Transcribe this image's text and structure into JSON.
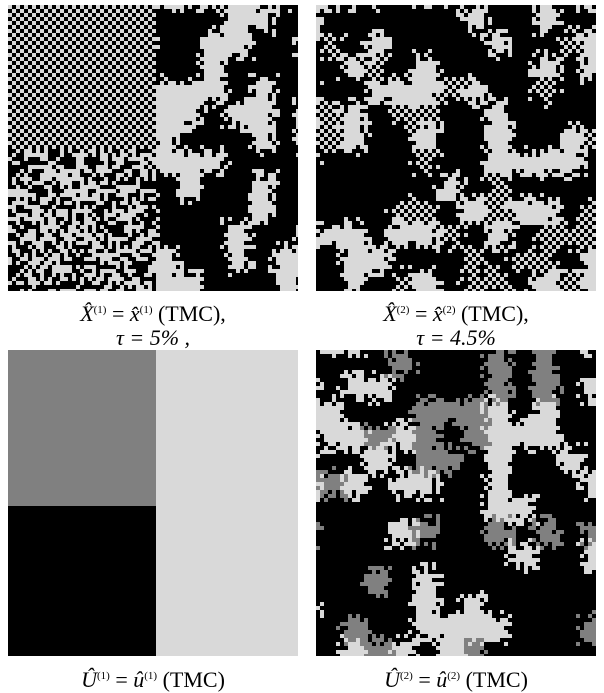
{
  "panels": [
    {
      "caption": {
        "lhs": "X̂",
        "lhs_sup": "(1)",
        "eq": "=",
        "rhs": "x̂",
        "rhs_sup": "(1)",
        "suffix": "(TMC),",
        "line2": "τ = 5% ,"
      }
    },
    {
      "caption": {
        "lhs": "X̂",
        "lhs_sup": "(2)",
        "eq": "=",
        "rhs": "x̂",
        "rhs_sup": "(2)",
        "suffix": "(TMC),",
        "line2": "τ = 4.5%"
      }
    },
    {
      "caption": {
        "lhs": "Û",
        "lhs_sup": "(1)",
        "eq": "=",
        "rhs": "û",
        "rhs_sup": "(1)",
        "suffix": "(TMC)"
      }
    },
    {
      "caption": {
        "lhs": "Û",
        "lhs_sup": "(2)",
        "eq": "=",
        "rhs": "û",
        "rhs_sup": "(2)",
        "suffix": "(TMC)"
      }
    }
  ]
}
